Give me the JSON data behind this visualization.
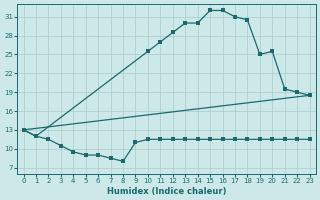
{
  "xlabel": "Humidex (Indice chaleur)",
  "background_color": "#cde8e8",
  "grid_color": "#aacccc",
  "line_color": "#1a6b6b",
  "xlim": [
    -0.5,
    23.5
  ],
  "ylim": [
    6,
    33
  ],
  "xticks": [
    0,
    1,
    2,
    3,
    4,
    5,
    6,
    7,
    8,
    9,
    10,
    11,
    12,
    13,
    14,
    15,
    16,
    17,
    18,
    19,
    20,
    21,
    22,
    23
  ],
  "yticks": [
    7,
    10,
    13,
    16,
    19,
    22,
    25,
    28,
    31
  ],
  "line1_x": [
    0,
    1,
    2,
    3,
    4,
    5,
    6,
    7,
    8,
    9,
    10,
    11,
    12,
    13,
    14,
    15,
    16,
    17,
    18,
    19,
    20,
    21,
    22,
    23
  ],
  "line1_y": [
    13,
    12,
    11.5,
    10.5,
    9.5,
    9.0,
    9.0,
    8.5,
    8.0,
    11.0,
    11.5,
    11.5,
    11.5,
    11.5,
    11.5,
    11.5,
    11.5,
    11.5,
    11.5,
    11.5,
    11.5,
    11.5,
    11.5,
    11.5
  ],
  "line2_x": [
    0,
    23
  ],
  "line2_y": [
    13,
    18.5
  ],
  "line3_x": [
    0,
    1,
    10,
    11,
    12,
    13,
    14,
    15,
    16,
    17,
    18,
    19,
    20,
    21,
    22,
    23
  ],
  "line3_y": [
    13,
    12,
    25.5,
    27.0,
    28.5,
    30.0,
    30.0,
    32.0,
    32.0,
    31.0,
    30.5,
    25.0,
    25.5,
    19.5,
    19.0,
    18.5
  ]
}
